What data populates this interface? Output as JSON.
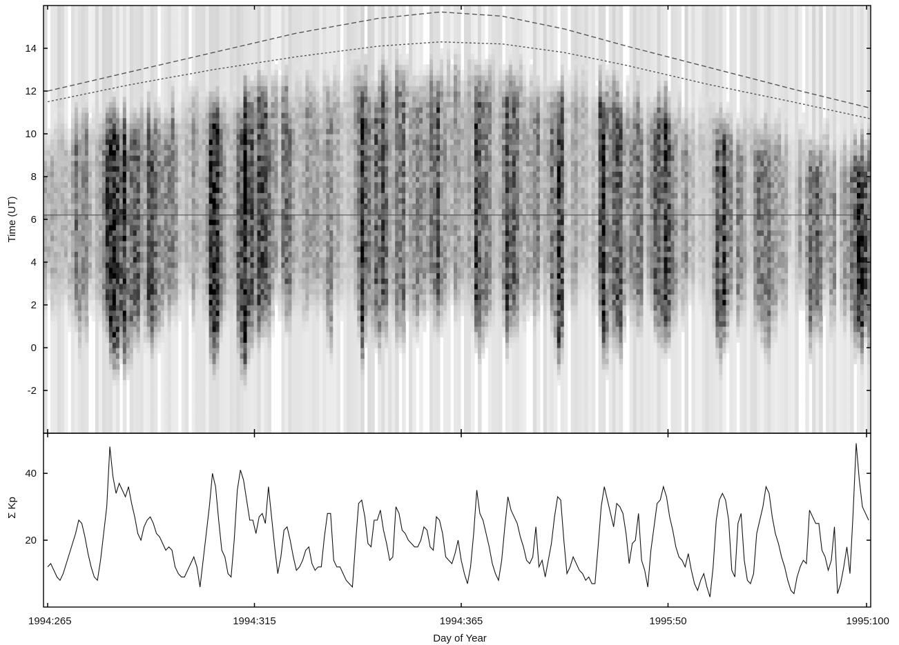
{
  "chart_data": [
    {
      "type": "heatmap",
      "ylabel": "Time (UT)",
      "xlim": [
        -1,
        199
      ],
      "ylim": [
        -4,
        16
      ],
      "yticks": [
        -2,
        0,
        2,
        4,
        6,
        8,
        10,
        12,
        14
      ],
      "ytick_labels": [
        "-2",
        "0",
        "2",
        "4",
        "6",
        "8",
        "10",
        "12",
        "14"
      ],
      "colormap": "grayscale, white = low, black = high",
      "horizontal_line_y": 6.2,
      "boundary_dashed": {
        "x": [
          0,
          20,
          40,
          60,
          80,
          95,
          110,
          125,
          140,
          160,
          180,
          199
        ],
        "y": [
          12.0,
          12.9,
          13.8,
          14.7,
          15.4,
          15.7,
          15.5,
          14.9,
          14.1,
          13.1,
          12.1,
          11.2
        ]
      },
      "boundary_dotted": {
        "x": [
          0,
          20,
          40,
          60,
          80,
          95,
          110,
          125,
          140,
          160,
          180,
          199
        ],
        "y": [
          11.5,
          12.3,
          13.0,
          13.6,
          14.1,
          14.3,
          14.2,
          13.8,
          13.2,
          12.3,
          11.5,
          10.7
        ]
      }
    },
    {
      "type": "line",
      "ylabel": "Σ Kp",
      "xlabel": "Day of Year",
      "xlim": [
        -1,
        199
      ],
      "ylim": [
        0,
        52
      ],
      "yticks": [
        20,
        40
      ],
      "ytick_labels": [
        "20",
        "40"
      ],
      "x_ticks": [
        0,
        50,
        100,
        150,
        198
      ],
      "x_tick_labels": [
        "1994:265",
        "1994:315",
        "1994:365",
        "1995:50",
        "1995:100"
      ],
      "series": [
        {
          "values": [
            12,
            13,
            11,
            9,
            8,
            10,
            13,
            16,
            19,
            22,
            26,
            25,
            21,
            16,
            12,
            9,
            8,
            14,
            22,
            30,
            48,
            39,
            34,
            37,
            35,
            33,
            36,
            31,
            27,
            22,
            20,
            24,
            26,
            27,
            25,
            22,
            21,
            19,
            17,
            18,
            17,
            12,
            10,
            9,
            9,
            11,
            13,
            15,
            12,
            6,
            14,
            22,
            30,
            40,
            36,
            26,
            17,
            15,
            10,
            9,
            20,
            35,
            41,
            38,
            32,
            26,
            26,
            22,
            27,
            28,
            25,
            36,
            27,
            18,
            10,
            15,
            23,
            24,
            20,
            15,
            11,
            12,
            14,
            17,
            18,
            13,
            11,
            12,
            12,
            21,
            28,
            28,
            14,
            12,
            12,
            10,
            8,
            7,
            6,
            19,
            31,
            32,
            27,
            19,
            18,
            26,
            26,
            29,
            23,
            19,
            14,
            15,
            30,
            28,
            23,
            22,
            20,
            19,
            18,
            18,
            20,
            24,
            23,
            18,
            17,
            27,
            26,
            22,
            15,
            14,
            13,
            16,
            20,
            14,
            10,
            7,
            12,
            22,
            35,
            28,
            26,
            22,
            18,
            13,
            10,
            8,
            14,
            24,
            33,
            29,
            27,
            25,
            21,
            18,
            14,
            13,
            15,
            24,
            12,
            14,
            9,
            14,
            19,
            27,
            33,
            32,
            20,
            10,
            12,
            15,
            13,
            11,
            10,
            8,
            9,
            7,
            7,
            18,
            30,
            36,
            32,
            28,
            24,
            31,
            30,
            28,
            22,
            13,
            19,
            20,
            28,
            14,
            11,
            6,
            17,
            24,
            31,
            32,
            36,
            33,
            27,
            23,
            18,
            15,
            14,
            12,
            16,
            11,
            7,
            5,
            8,
            10,
            6,
            3,
            12,
            26,
            32,
            34,
            32,
            26,
            11,
            9,
            25,
            28,
            14,
            8,
            7,
            10,
            22,
            26,
            30,
            36,
            34,
            27,
            22,
            19,
            15,
            12,
            8,
            5,
            4,
            9,
            12,
            14,
            13,
            29,
            27,
            25,
            25,
            17,
            15,
            11,
            14,
            24,
            4,
            7,
            12,
            18,
            10,
            28,
            49,
            38,
            30,
            28,
            26
          ],
          "color": "#000000"
        }
      ]
    }
  ]
}
